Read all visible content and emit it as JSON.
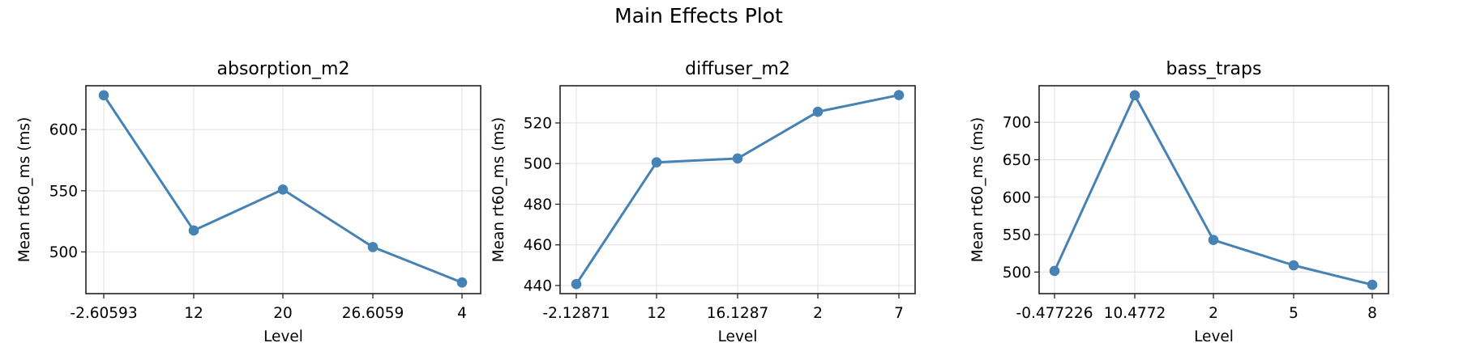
{
  "figure": {
    "title": "Main Effects Plot",
    "line_color": "#4682b4",
    "grid_color": "#e3e3e3",
    "frame_color": "#222222"
  },
  "chart_data": [
    {
      "type": "line",
      "title": "absorption_m2",
      "xlabel": "Level",
      "ylabel": "Mean rt60_ms (ms)",
      "categories": [
        "-2.60593",
        "12",
        "20",
        "26.6059",
        "4"
      ],
      "values": [
        628,
        517.5,
        551,
        504,
        475
      ],
      "yticks": [
        500,
        550,
        600
      ],
      "ylim": [
        465.9,
        635.8
      ],
      "grid": true,
      "marker": "circle"
    },
    {
      "type": "line",
      "title": "diffuser_m2",
      "xlabel": "Level",
      "ylabel": "Mean rt60_ms (ms)",
      "categories": [
        "-2.12871",
        "12",
        "16.1287",
        "2",
        "7"
      ],
      "values": [
        440.7,
        500.6,
        502.5,
        525.5,
        533.7
      ],
      "yticks": [
        440,
        460,
        480,
        500,
        520
      ],
      "ylim": [
        436.0,
        538.3
      ],
      "grid": true,
      "marker": "circle"
    },
    {
      "type": "line",
      "title": "bass_traps",
      "xlabel": "Level",
      "ylabel": "Mean rt60_ms (ms)",
      "categories": [
        "-0.477226",
        "10.4772",
        "2",
        "5",
        "8"
      ],
      "values": [
        501.5,
        736,
        542.8,
        509,
        483
      ],
      "yticks": [
        500,
        550,
        600,
        650,
        700
      ],
      "ylim": [
        471.2,
        748.8
      ],
      "grid": true,
      "marker": "circle"
    }
  ]
}
